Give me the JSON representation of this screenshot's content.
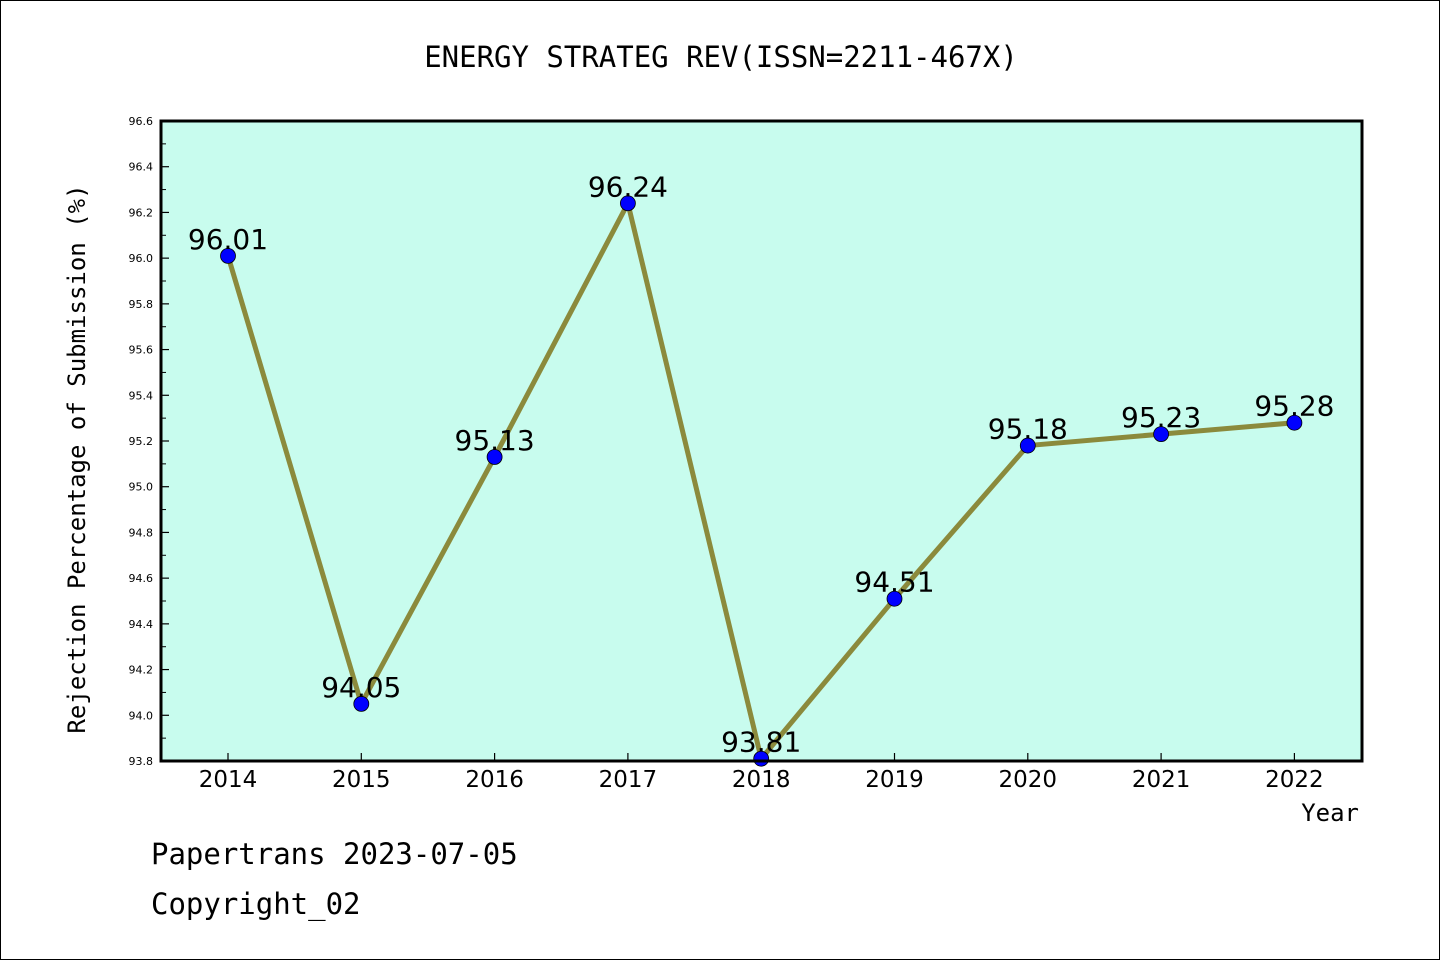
{
  "chart_data": {
    "type": "line",
    "title": "ENERGY STRATEG REV(ISSN=2211-467X)",
    "xlabel": "Year",
    "ylabel": "Rejection Percentage of Submission (%)",
    "categories": [
      "2014",
      "2015",
      "2016",
      "2017",
      "2018",
      "2019",
      "2020",
      "2021",
      "2022"
    ],
    "series": [
      {
        "values": [
          96.01,
          94.05,
          95.13,
          96.24,
          93.81,
          94.51,
          95.18,
          95.23,
          95.28
        ],
        "labels": [
          "96.01",
          "94.05",
          "95.13",
          "96.24",
          "93.81",
          "94.51",
          "95.18",
          "95.23",
          "95.28"
        ],
        "line_color": "#8b8a3c",
        "marker_color": "#0000ff"
      }
    ],
    "ylim": [
      93.8,
      96.6
    ],
    "yticks": [
      "93.8",
      "94.0",
      "94.2",
      "94.4",
      "94.6",
      "94.8",
      "95.0",
      "95.2",
      "95.4",
      "95.6",
      "95.8",
      "96.0",
      "96.2",
      "96.4",
      "96.6"
    ],
    "plot_background": "#c8fcee",
    "grid": false,
    "legend": "none"
  },
  "footer": {
    "line1": "Papertrans 2023-07-05",
    "line2": "Copyright_02"
  }
}
